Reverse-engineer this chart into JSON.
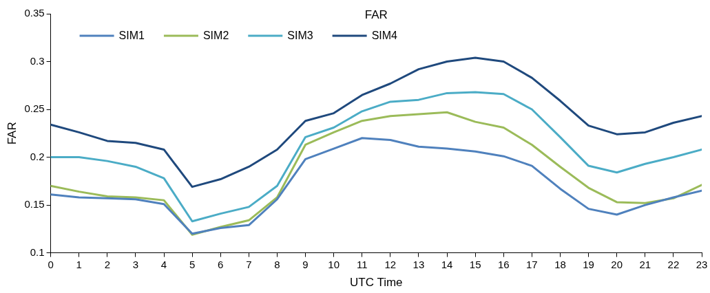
{
  "chart_data": {
    "type": "line",
    "title": "FAR",
    "xlabel": "UTC Time",
    "ylabel": "FAR",
    "x": [
      0,
      1,
      2,
      3,
      4,
      5,
      6,
      7,
      8,
      9,
      10,
      11,
      12,
      13,
      14,
      15,
      16,
      17,
      18,
      19,
      20,
      21,
      22,
      23
    ],
    "xlim": [
      0,
      23
    ],
    "xticks": [
      0,
      1,
      2,
      3,
      4,
      5,
      6,
      7,
      8,
      9,
      10,
      11,
      12,
      13,
      14,
      15,
      16,
      17,
      18,
      19,
      20,
      21,
      22,
      23
    ],
    "ylim": [
      0.1,
      0.35
    ],
    "yticks": [
      0.1,
      0.15,
      0.2,
      0.25,
      0.3,
      0.35
    ],
    "grid": false,
    "legend": "top left",
    "marker": "none",
    "line_style": "solid",
    "series": [
      {
        "name": "SIM1",
        "color": "#4f81bd",
        "values": [
          0.161,
          0.158,
          0.157,
          0.156,
          0.151,
          0.12,
          0.126,
          0.129,
          0.156,
          0.198,
          0.209,
          0.22,
          0.218,
          0.211,
          0.209,
          0.206,
          0.201,
          0.191,
          0.167,
          0.146,
          0.14,
          0.15,
          0.158,
          0.165
        ]
      },
      {
        "name": "SIM2",
        "color": "#9bbb59",
        "values": [
          0.17,
          0.164,
          0.159,
          0.158,
          0.155,
          0.119,
          0.127,
          0.134,
          0.158,
          0.213,
          0.226,
          0.238,
          0.243,
          0.245,
          0.247,
          0.237,
          0.231,
          0.213,
          0.19,
          0.168,
          0.153,
          0.152,
          0.157,
          0.171
        ]
      },
      {
        "name": "SIM3",
        "color": "#4bacc6",
        "values": [
          0.2,
          0.2,
          0.196,
          0.19,
          0.178,
          0.133,
          0.141,
          0.148,
          0.17,
          0.221,
          0.231,
          0.248,
          0.258,
          0.26,
          0.267,
          0.268,
          0.266,
          0.25,
          0.221,
          0.191,
          0.184,
          0.193,
          0.2,
          0.208
        ]
      },
      {
        "name": "SIM4",
        "color": "#1f497d",
        "values": [
          0.234,
          0.226,
          0.217,
          0.215,
          0.208,
          0.169,
          0.177,
          0.19,
          0.208,
          0.238,
          0.246,
          0.265,
          0.277,
          0.292,
          0.3,
          0.304,
          0.3,
          0.283,
          0.259,
          0.233,
          0.224,
          0.226,
          0.236,
          0.243
        ]
      }
    ]
  }
}
